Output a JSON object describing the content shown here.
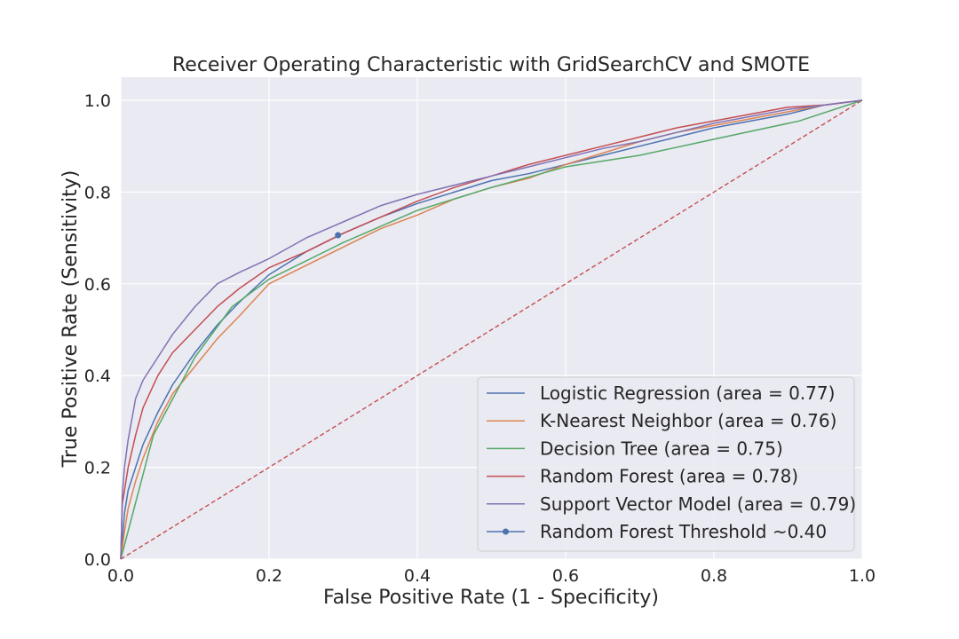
{
  "chart_data": {
    "type": "line",
    "title": "Receiver Operating Characteristic with GridSearchCV and SMOTE",
    "xlabel": "False Positive Rate (1 - Specificity)",
    "ylabel": "True Positive Rate (Sensitivity)",
    "xlim": [
      0.0,
      1.0
    ],
    "ylim": [
      0.0,
      1.05
    ],
    "xticks": [
      "0.0",
      "0.2",
      "0.4",
      "0.6",
      "0.8",
      "1.0"
    ],
    "yticks": [
      "0.0",
      "0.2",
      "0.4",
      "0.6",
      "0.8",
      "1.0"
    ],
    "grid": true,
    "legend_position": "lower-right",
    "series": [
      {
        "name": "Logistic Regression (area = 0.77)",
        "color": "#4C72B0",
        "x": [
          0,
          0.005,
          0.01,
          0.02,
          0.03,
          0.05,
          0.07,
          0.1,
          0.13,
          0.16,
          0.2,
          0.25,
          0.3,
          0.35,
          0.4,
          0.45,
          0.5,
          0.55,
          0.6,
          0.65,
          0.7,
          0.75,
          0.8,
          0.85,
          0.9,
          0.95,
          1.0
        ],
        "y": [
          0,
          0.1,
          0.15,
          0.2,
          0.25,
          0.32,
          0.38,
          0.45,
          0.51,
          0.56,
          0.62,
          0.67,
          0.71,
          0.745,
          0.775,
          0.8,
          0.825,
          0.84,
          0.86,
          0.88,
          0.9,
          0.92,
          0.94,
          0.955,
          0.97,
          0.99,
          1.0
        ]
      },
      {
        "name": "K-Nearest Neighbor (area = 0.76)",
        "color": "#DD8452",
        "x": [
          0,
          0.005,
          0.01,
          0.02,
          0.03,
          0.05,
          0.07,
          0.1,
          0.13,
          0.16,
          0.2,
          0.25,
          0.3,
          0.35,
          0.4,
          0.45,
          0.5,
          0.55,
          0.6,
          0.65,
          0.7,
          0.75,
          0.8,
          0.85,
          0.9,
          0.95,
          1.0
        ],
        "y": [
          0,
          0.06,
          0.11,
          0.17,
          0.22,
          0.3,
          0.36,
          0.42,
          0.48,
          0.53,
          0.6,
          0.64,
          0.68,
          0.72,
          0.75,
          0.785,
          0.81,
          0.83,
          0.86,
          0.885,
          0.91,
          0.93,
          0.945,
          0.96,
          0.975,
          0.99,
          1.0
        ]
      },
      {
        "name": "Decision Tree (area = 0.75)",
        "color": "#55A868",
        "x": [
          0,
          0.044,
          0.1,
          0.15,
          0.2,
          0.3,
          0.4,
          0.5,
          0.6,
          0.7,
          0.8,
          0.915,
          1.0
        ],
        "y": [
          0,
          0.27,
          0.44,
          0.55,
          0.61,
          0.69,
          0.76,
          0.81,
          0.855,
          0.88,
          0.915,
          0.955,
          1.0
        ]
      },
      {
        "name": "Random Forest (area = 0.78)",
        "color": "#C44E52",
        "x": [
          0,
          0.002,
          0.005,
          0.01,
          0.02,
          0.03,
          0.05,
          0.07,
          0.1,
          0.13,
          0.16,
          0.2,
          0.25,
          0.3,
          0.35,
          0.4,
          0.45,
          0.5,
          0.55,
          0.6,
          0.65,
          0.7,
          0.75,
          0.8,
          0.85,
          0.9,
          0.95,
          1.0
        ],
        "y": [
          0,
          0.12,
          0.15,
          0.2,
          0.27,
          0.33,
          0.4,
          0.45,
          0.5,
          0.55,
          0.59,
          0.635,
          0.67,
          0.71,
          0.745,
          0.78,
          0.81,
          0.835,
          0.86,
          0.88,
          0.9,
          0.92,
          0.94,
          0.955,
          0.97,
          0.985,
          0.99,
          1.0
        ]
      },
      {
        "name": "Support Vector Model (area = 0.79)",
        "color": "#8172B3",
        "x": [
          0,
          0.002,
          0.005,
          0.01,
          0.02,
          0.03,
          0.05,
          0.07,
          0.1,
          0.13,
          0.16,
          0.2,
          0.25,
          0.3,
          0.35,
          0.4,
          0.45,
          0.5,
          0.55,
          0.6,
          0.65,
          0.7,
          0.75,
          0.8,
          0.85,
          0.9,
          0.95,
          1.0
        ],
        "y": [
          0,
          0.14,
          0.2,
          0.26,
          0.35,
          0.39,
          0.44,
          0.49,
          0.55,
          0.6,
          0.625,
          0.655,
          0.7,
          0.735,
          0.77,
          0.795,
          0.815,
          0.835,
          0.855,
          0.875,
          0.895,
          0.91,
          0.93,
          0.95,
          0.965,
          0.98,
          0.99,
          1.0
        ]
      },
      {
        "name": "Random Forest Threshold ~0.40",
        "color": "#4C72B0",
        "marker": true,
        "x": [
          0.293
        ],
        "y": [
          0.706
        ]
      }
    ],
    "reference_line": {
      "color": "#C44E52",
      "style": "dashed",
      "x": [
        0,
        1
      ],
      "y": [
        0,
        1
      ]
    }
  }
}
